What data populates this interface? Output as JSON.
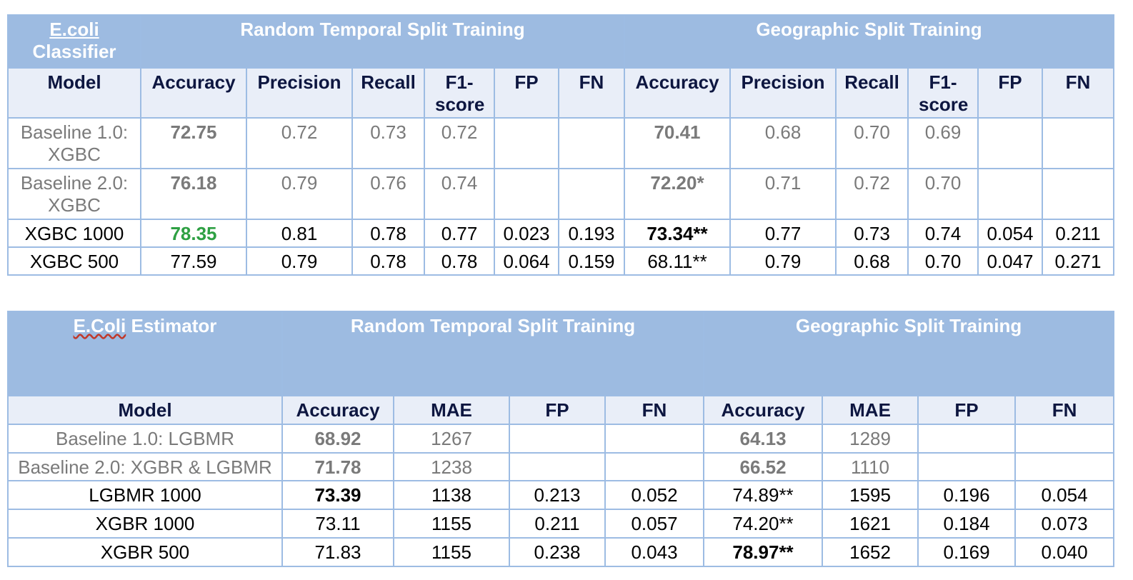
{
  "classifier": {
    "corner_line1": "E.coli",
    "corner_line2": "Classifier",
    "group1": "Random Temporal Split Training",
    "group2": "Geographic Split Training",
    "headers": [
      "Model",
      "Accuracy",
      "Precision",
      "Recall",
      "F1-score",
      "FP",
      "FN",
      "Accuracy",
      "Precision",
      "Recall",
      "F1-score",
      "FP",
      "FN"
    ],
    "rows": [
      {
        "model": "Baseline 1.0: XGBC",
        "cells": [
          "72.75",
          "0.72",
          "0.73",
          "0.72",
          "",
          "",
          "70.41",
          "0.68",
          "0.70",
          "0.69",
          "",
          ""
        ]
      },
      {
        "model": "Baseline 2.0: XGBC",
        "cells": [
          "76.18",
          "0.79",
          "0.76",
          "0.74",
          "",
          "",
          "72.20*",
          "0.71",
          "0.72",
          "0.70",
          "",
          ""
        ]
      },
      {
        "model": "XGBC 1000",
        "cells": [
          "78.35",
          "0.81",
          "0.78",
          "0.77",
          "0.023",
          "0.193",
          "73.34**",
          "0.77",
          "0.73",
          "0.74",
          "0.054",
          "0.211"
        ]
      },
      {
        "model": "XGBC 500",
        "cells": [
          "77.59",
          "0.79",
          "0.78",
          "0.78",
          "0.064",
          "0.159",
          "68.11**",
          "0.79",
          "0.68",
          "0.70",
          "0.047",
          "0.271"
        ]
      }
    ]
  },
  "estimator": {
    "corner_word1": "E.Coli",
    "corner_word2": " Estimator",
    "group1": "Random Temporal Split Training",
    "group2": "Geographic Split Training",
    "headers": [
      "Model",
      "Accuracy",
      "MAE",
      "FP",
      "FN",
      "Accuracy",
      "MAE",
      "FP",
      "FN"
    ],
    "rows": [
      {
        "model": "Baseline 1.0: LGBMR",
        "cells": [
          "68.92",
          "1267",
          "",
          "",
          "64.13",
          "1289",
          "",
          ""
        ]
      },
      {
        "model": "Baseline 2.0: XGBR & LGBMR",
        "cells": [
          "71.78",
          "1238",
          "",
          "",
          "66.52",
          "1110",
          "",
          ""
        ]
      },
      {
        "model": "LGBMR 1000",
        "cells": [
          "73.39",
          "1138",
          "0.213",
          "0.052",
          "74.89**",
          "1595",
          "0.196",
          "0.054"
        ]
      },
      {
        "model": "XGBR 1000",
        "cells": [
          "73.11",
          "1155",
          "0.211",
          "0.057",
          "74.20**",
          "1621",
          "0.184",
          "0.073"
        ]
      },
      {
        "model": "XGBR 500",
        "cells": [
          "71.83",
          "1155",
          "0.238",
          "0.043",
          "78.97**",
          "1652",
          "0.169",
          "0.040"
        ]
      }
    ]
  },
  "colors": {
    "header_bg": "#9dbbe1",
    "subheader_bg": "#e9eef8",
    "subheader_text": "#0d1640",
    "baseline_text": "#7a7a7a",
    "highlight": "#2ea043"
  }
}
